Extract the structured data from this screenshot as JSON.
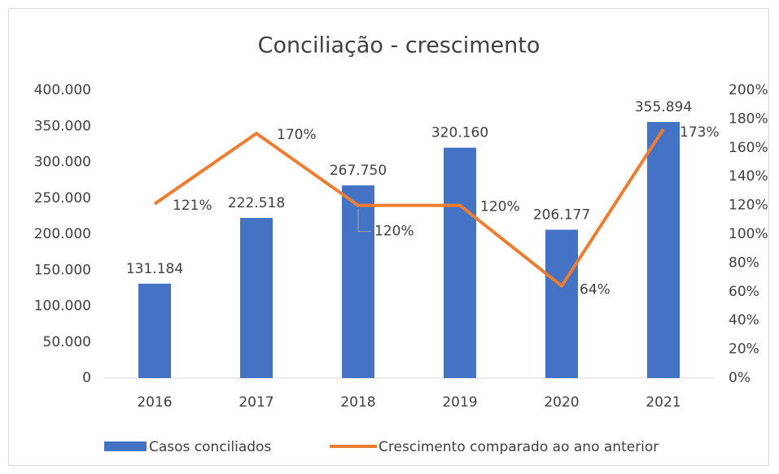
{
  "chart_data": {
    "type": "bar",
    "title": "Conciliação - crescimento",
    "categories": [
      "2016",
      "2017",
      "2018",
      "2019",
      "2020",
      "2021"
    ],
    "series": [
      {
        "name": "Casos conciliados",
        "type": "bar",
        "color": "#4472c4",
        "values": [
          131184,
          222518,
          267750,
          320160,
          206177,
          355894
        ],
        "value_labels": [
          "131.184",
          "222.518",
          "267.750",
          "320.160",
          "206.177",
          "355.894"
        ]
      },
      {
        "name": "Crescimento comparado ao ano anterior",
        "type": "line",
        "axis": "y2",
        "color": "#ed7d31",
        "values": [
          121,
          170,
          120,
          120,
          64,
          173
        ],
        "value_labels": [
          "121%",
          "170%",
          "120%",
          "120%",
          "64%",
          "173%"
        ]
      }
    ],
    "ylim": [
      0,
      400000
    ],
    "yticks": [
      0,
      {
        "value": 50000,
        "label": "50.000"
      },
      {
        "value": 100000,
        "label": "100.000"
      },
      {
        "value": 150000,
        "label": "150.000"
      },
      {
        "value": 200000,
        "label": "200.000"
      },
      {
        "value": 250000,
        "label": "250.000"
      },
      {
        "value": 300000,
        "label": "300.000"
      },
      {
        "value": 350000,
        "label": "350.000"
      },
      {
        "value": 400000,
        "label": "400.000"
      }
    ],
    "y2lim": [
      0,
      200
    ],
    "y2ticks": [
      {
        "value": 0,
        "label": "0%"
      },
      {
        "value": 20,
        "label": "20%"
      },
      {
        "value": 40,
        "label": "40%"
      },
      {
        "value": 60,
        "label": "60%"
      },
      {
        "value": 80,
        "label": "80%"
      },
      {
        "value": 100,
        "label": "100%"
      },
      {
        "value": 120,
        "label": "120%"
      },
      {
        "value": 140,
        "label": "140%"
      },
      {
        "value": 160,
        "label": "160%"
      },
      {
        "value": 180,
        "label": "180%"
      },
      {
        "value": 200,
        "label": "200%"
      }
    ],
    "grid": false,
    "legend": "bottom"
  }
}
